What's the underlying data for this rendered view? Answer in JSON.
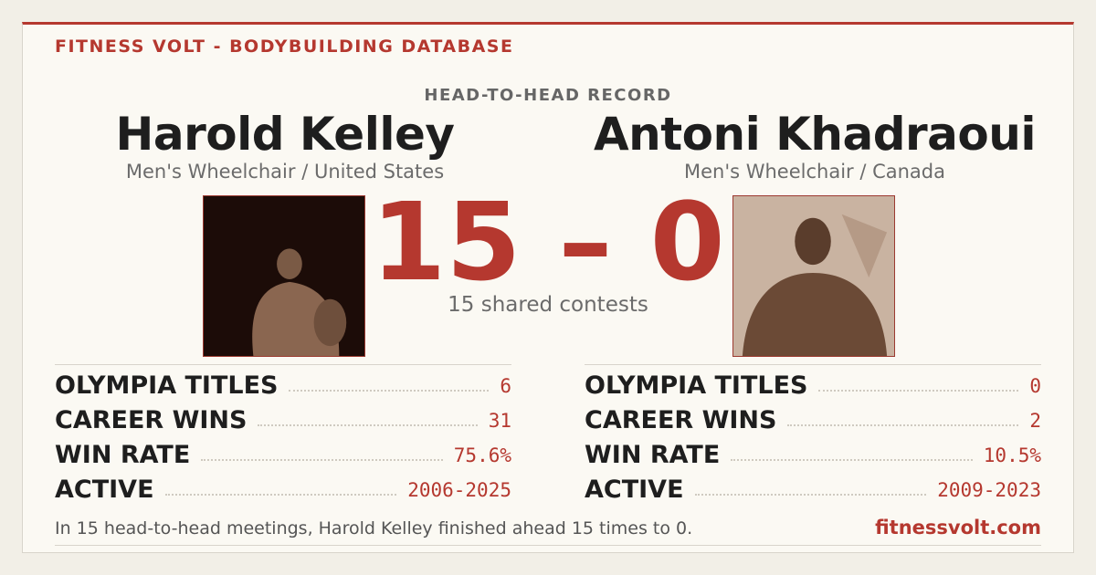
{
  "header": {
    "brand": "FITNESS VOLT - BODYBUILDING DATABASE",
    "kicker": "HEAD-TO-HEAD RECORD"
  },
  "athletes": [
    {
      "name": "Harold Kelley",
      "division": "Men's Wheelchair / United States",
      "stats": [
        {
          "label": "OLYMPIA TITLES",
          "value": "6"
        },
        {
          "label": "CAREER WINS",
          "value": "31"
        },
        {
          "label": "WIN RATE",
          "value": "75.6%"
        },
        {
          "label": "ACTIVE",
          "value": "2006-2025"
        }
      ]
    },
    {
      "name": "Antoni Khadraoui",
      "division": "Men's Wheelchair / Canada",
      "stats": [
        {
          "label": "OLYMPIA TITLES",
          "value": "0"
        },
        {
          "label": "CAREER WINS",
          "value": "2"
        },
        {
          "label": "WIN RATE",
          "value": "10.5%"
        },
        {
          "label": "ACTIVE",
          "value": "2009-2023"
        }
      ]
    }
  ],
  "score": {
    "text": "15 – 0",
    "note": "15 shared contests"
  },
  "footer": {
    "summary": "In 15 head-to-head meetings, Harold Kelley finished ahead 15 times to 0.",
    "site": "fitnessvolt.com"
  }
}
